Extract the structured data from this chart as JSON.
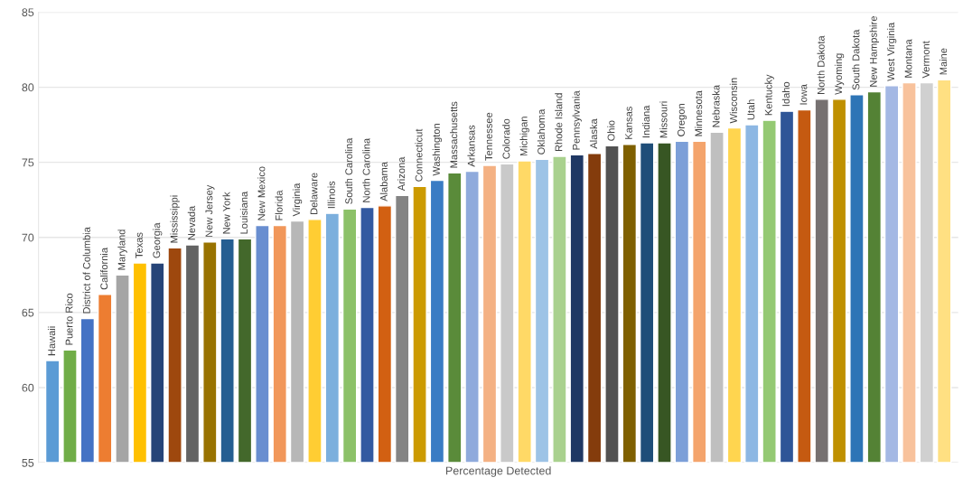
{
  "chart_data": {
    "type": "bar",
    "xlabel": "Percentage Detected",
    "categories": [
      "Hawaii",
      "Puerto Rico",
      "District of Columbia",
      "California",
      "Maryland",
      "Texas",
      "Georgia",
      "Mississippi",
      "Nevada",
      "New Jersey",
      "New York",
      "Louisiana",
      "New Mexico",
      "Florida",
      "Virginia",
      "Delaware",
      "Illinois",
      "South Carolina",
      "North Carolina",
      "Alabama",
      "Arizona",
      "Connecticut",
      "Washington",
      "Massachusetts",
      "Arkansas",
      "Tennessee",
      "Colorado",
      "Michigan",
      "Oklahoma",
      "Rhode Island",
      "Pennsylvania",
      "Alaska",
      "Ohio",
      "Kansas",
      "Indiana",
      "Missouri",
      "Oregon",
      "Minnesota",
      "Nebraska",
      "Wisconsin",
      "Utah",
      "Kentucky",
      "Idaho",
      "Iowa",
      "North Dakota",
      "Wyoming",
      "South Dakota",
      "New Hampshire",
      "West Virginia",
      "Montana",
      "Vermont",
      "Maine"
    ],
    "values": [
      61.8,
      62.5,
      64.6,
      66.2,
      67.5,
      68.3,
      68.3,
      69.3,
      69.5,
      69.7,
      69.9,
      69.9,
      70.8,
      70.8,
      71.1,
      71.2,
      71.6,
      71.9,
      72.0,
      72.1,
      72.8,
      73.4,
      73.8,
      74.3,
      74.4,
      74.8,
      74.9,
      75.1,
      75.2,
      75.4,
      75.5,
      75.6,
      76.1,
      76.2,
      76.3,
      76.3,
      76.4,
      76.4,
      77.0,
      77.3,
      77.5,
      77.8,
      78.4,
      78.5,
      79.2,
      79.2,
      79.5,
      79.7,
      80.1,
      80.3,
      80.3,
      80.5
    ],
    "colors": [
      "#5b9bd5",
      "#70ad47",
      "#4472c4",
      "#ed7d31",
      "#a5a5a5",
      "#ffc000",
      "#264478",
      "#9e480e",
      "#636363",
      "#997300",
      "#255e91",
      "#43682b",
      "#698ed0",
      "#f1975a",
      "#b7b7b7",
      "#ffcd33",
      "#7cafdd",
      "#8cc168",
      "#335aa1",
      "#d26012",
      "#848484",
      "#cc9a00",
      "#3a7cc4",
      "#5a8b3a",
      "#8faadc",
      "#f4b183",
      "#c9c9c9",
      "#ffd966",
      "#9dc3e6",
      "#a9d18e",
      "#1f3864",
      "#843c0c",
      "#525252",
      "#7f6000",
      "#1f4e79",
      "#375623",
      "#7c9fd8",
      "#f4a46c",
      "#bfbfbf",
      "#ffd54f",
      "#8db7e3",
      "#94c973",
      "#2f5597",
      "#c55a11",
      "#767171",
      "#bf9000",
      "#2e75b6",
      "#548235",
      "#a4b8e4",
      "#f8c29c",
      "#d0d0d0",
      "#ffe082"
    ],
    "ylim": [
      55,
      85
    ],
    "yticks": [
      55,
      60,
      65,
      70,
      75,
      80,
      85
    ],
    "grid": "y"
  }
}
